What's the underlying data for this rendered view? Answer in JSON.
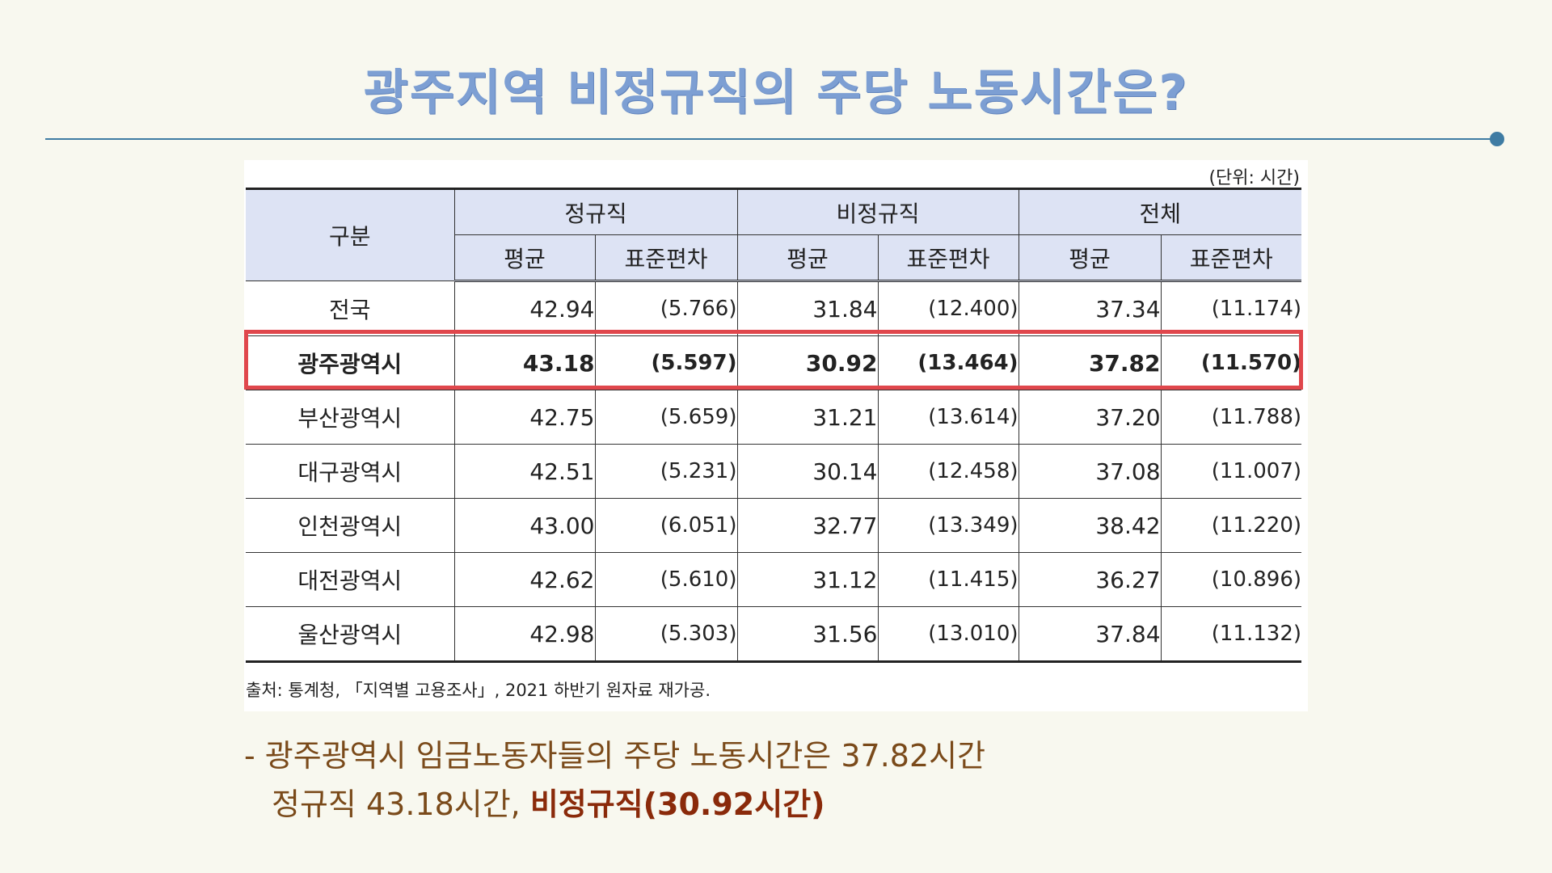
{
  "title": "광주지역 비정규직의 주당 노동시간은?",
  "colors": {
    "title": "#7d9fd3",
    "rule": "#3f7ca3",
    "highlight_border": "#e0474c",
    "header_bg": "#dde3f4",
    "note_text": "#7a4a1a"
  },
  "table": {
    "unit": "(단위: 시간)",
    "headers": {
      "category": "구분",
      "groups": [
        "정규직",
        "비정규직",
        "전체"
      ],
      "sub": [
        "평균",
        "표준편차",
        "평균",
        "표준편차",
        "평균",
        "표준편차"
      ]
    },
    "rows": [
      {
        "region": "전국",
        "cells": [
          "42.94",
          "(5.766)",
          "31.84",
          "(12.400)",
          "37.34",
          "(11.174)"
        ]
      },
      {
        "region": "광주광역시",
        "cells": [
          "43.18",
          "(5.597)",
          "30.92",
          "(13.464)",
          "37.82",
          "(11.570)"
        ]
      },
      {
        "region": "부산광역시",
        "cells": [
          "42.75",
          "(5.659)",
          "31.21",
          "(13.614)",
          "37.20",
          "(11.788)"
        ]
      },
      {
        "region": "대구광역시",
        "cells": [
          "42.51",
          "(5.231)",
          "30.14",
          "(12.458)",
          "37.08",
          "(11.007)"
        ]
      },
      {
        "region": "인천광역시",
        "cells": [
          "43.00",
          "(6.051)",
          "32.77",
          "(13.349)",
          "38.42",
          "(11.220)"
        ]
      },
      {
        "region": "대전광역시",
        "cells": [
          "42.62",
          "(5.610)",
          "31.12",
          "(11.415)",
          "36.27",
          "(10.896)"
        ]
      },
      {
        "region": "울산광역시",
        "cells": [
          "42.98",
          "(5.303)",
          "31.56",
          "(13.010)",
          "37.84",
          "(11.132)"
        ]
      }
    ],
    "highlighted_row": "광주광역시",
    "source": "출처: 통계청, 「지역별 고용조사」, 2021 하반기 원자료 재가공."
  },
  "notes": {
    "line1": "- 광주광역시 임금노동자들의 주당 노동시간은 37.82시간",
    "line2_prefix": "정규직 43.18시간, ",
    "line2_emph": "비정규직(30.92시간)"
  }
}
